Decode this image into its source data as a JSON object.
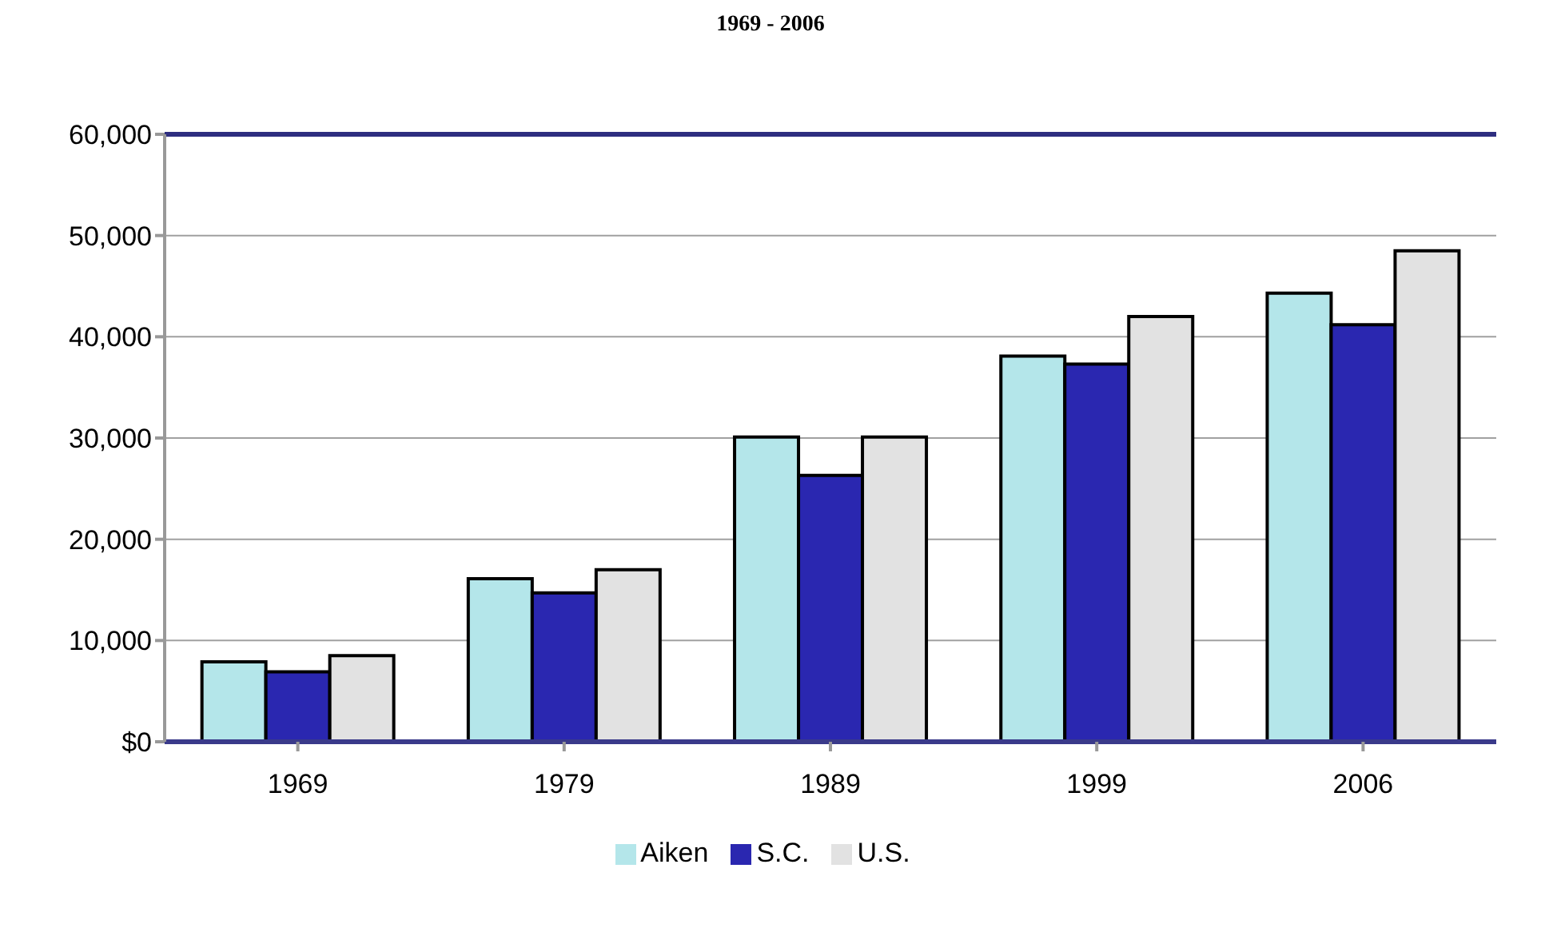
{
  "chart_data": {
    "type": "bar",
    "title": "1969 - 2006",
    "categories": [
      "1969",
      "1979",
      "1989",
      "1999",
      "2006"
    ],
    "series": [
      {
        "name": "Aiken",
        "color": "#b4e6ea",
        "values": [
          7900,
          16100,
          30100,
          38100,
          44300
        ]
      },
      {
        "name": "S.C.",
        "color": "#2a27b0",
        "values": [
          6900,
          14700,
          26300,
          37300,
          41200
        ]
      },
      {
        "name": "U.S.",
        "color": "#e2e2e2",
        "values": [
          8500,
          17000,
          30100,
          42000,
          48500
        ]
      }
    ],
    "ylim": [
      0,
      60000
    ],
    "yticks": [
      {
        "value": 0,
        "label": "$0"
      },
      {
        "value": 10000,
        "label": "10,000"
      },
      {
        "value": 20000,
        "label": "20,000"
      },
      {
        "value": 30000,
        "label": "30,000"
      },
      {
        "value": 40000,
        "label": "40,000"
      },
      {
        "value": 50000,
        "label": "50,000"
      },
      {
        "value": 60000,
        "label": "60,000"
      }
    ],
    "grid": "y",
    "legend": "bottom"
  }
}
